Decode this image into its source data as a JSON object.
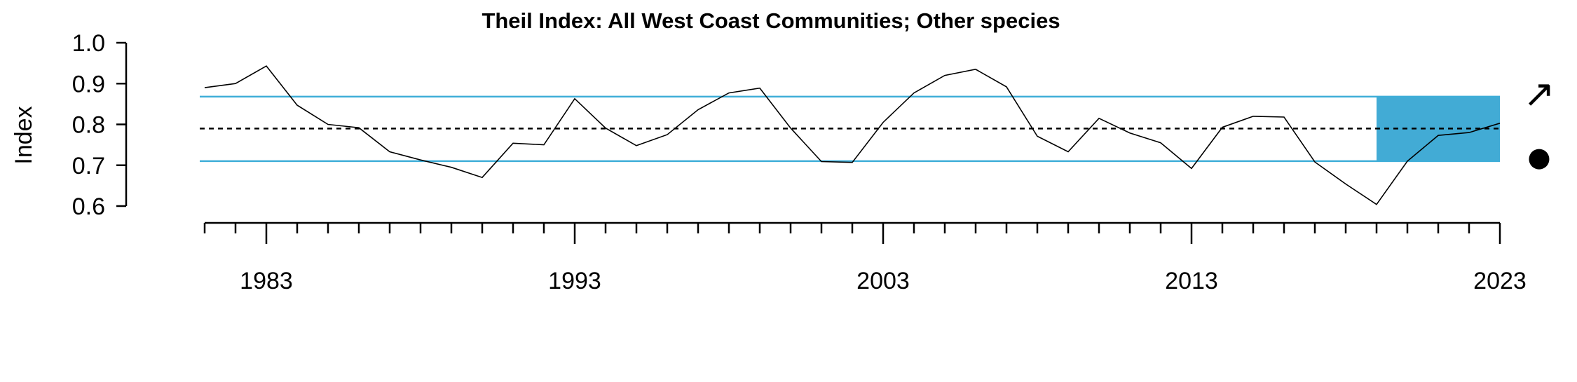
{
  "chart_data": {
    "type": "line",
    "title": "Theil Index: All West Coast Communities; Other species",
    "xlabel": "",
    "ylabel": "Index",
    "x": [
      1981,
      1982,
      1983,
      1984,
      1985,
      1986,
      1987,
      1988,
      1989,
      1990,
      1991,
      1992,
      1993,
      1994,
      1995,
      1996,
      1997,
      1998,
      1999,
      2000,
      2001,
      2002,
      2003,
      2004,
      2005,
      2006,
      2007,
      2008,
      2009,
      2010,
      2011,
      2012,
      2013,
      2014,
      2015,
      2016,
      2017,
      2018,
      2019,
      2020,
      2021,
      2022,
      2023
    ],
    "series": [
      {
        "values": [
          0.89,
          0.9,
          0.943,
          0.847,
          0.8,
          0.792,
          0.733,
          0.713,
          0.695,
          0.67,
          0.754,
          0.75,
          0.863,
          0.791,
          0.748,
          0.775,
          0.836,
          0.877,
          0.889,
          0.791,
          0.709,
          0.707,
          0.805,
          0.877,
          0.92,
          0.935,
          0.892,
          0.771,
          0.733,
          0.815,
          0.779,
          0.755,
          0.692,
          0.793,
          0.82,
          0.818,
          0.708,
          0.654,
          0.604,
          0.71,
          0.773,
          0.78,
          0.803
        ],
        "color": "#000000"
      }
    ],
    "mean": 0.79,
    "upper_sd": 0.868,
    "lower_sd": 0.71,
    "highlight_range": [
      2019,
      2023
    ],
    "ylim": [
      0.6,
      1.0
    ],
    "xlim": [
      1981,
      2023
    ],
    "y_ticks": [
      "0.6",
      "0.7",
      "0.8",
      "0.9",
      "1.0"
    ],
    "x_tick_labels": [
      "1983",
      "1993",
      "2003",
      "2013",
      "2023"
    ],
    "x_tick_label_years": [
      1983,
      1993,
      2003,
      2013,
      2023
    ],
    "trend_symbol": "↗",
    "mean_symbol": "●",
    "sd_line_color": "#3FAED8",
    "highlight_color": "#42ABD5",
    "mean_line_color": "#000000",
    "grid": false,
    "legend": "none"
  }
}
